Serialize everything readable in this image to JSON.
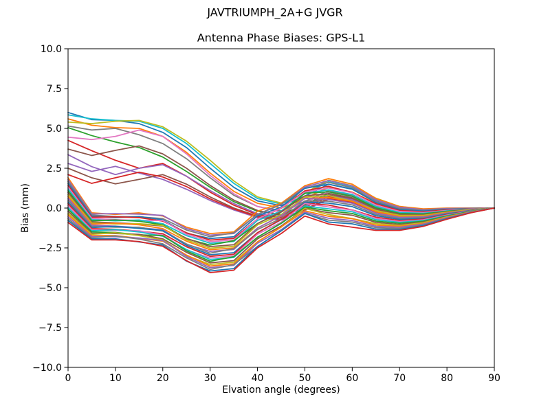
{
  "chart_data": {
    "type": "line",
    "title": "JAVTRIUMPH_2A+G JVGR",
    "subtitle": "Antenna Phase Biases: GPS-L1",
    "xlabel": "Elvation angle (degrees)",
    "ylabel": "Bias (mm)",
    "xlim": [
      0,
      90
    ],
    "ylim": [
      -10.0,
      10.0
    ],
    "xticks": [
      0,
      10,
      20,
      30,
      40,
      50,
      60,
      70,
      80,
      90
    ],
    "yticks": [
      -10.0,
      -7.5,
      -5.0,
      -2.5,
      0.0,
      2.5,
      5.0,
      7.5,
      10.0
    ],
    "ytick_labels": [
      "−10.0",
      "−7.5",
      "−5.0",
      "−2.5",
      "0.0",
      "2.5",
      "5.0",
      "7.5",
      "10.0"
    ],
    "grid": false,
    "legend": "none",
    "x": [
      0,
      5,
      10,
      15,
      20,
      25,
      30,
      35,
      40,
      45,
      50,
      55,
      60,
      65,
      70,
      75,
      80,
      85,
      90
    ],
    "series": [
      {
        "name": "line-01",
        "color": "#1f77b4",
        "values": [
          6.0,
          5.55,
          5.5,
          5.3,
          4.75,
          3.8,
          2.5,
          1.3,
          0.45,
          0.15,
          0.75,
          1.5,
          1.2,
          0.45,
          -0.05,
          -0.2,
          -0.1,
          -0.02,
          0.0
        ]
      },
      {
        "name": "line-02",
        "color": "#17becf",
        "values": [
          5.85,
          5.6,
          5.5,
          5.45,
          5.0,
          4.05,
          2.8,
          1.55,
          0.6,
          0.25,
          0.9,
          1.65,
          1.32,
          0.58,
          0.08,
          -0.1,
          -0.04,
          0.0,
          0.0
        ]
      },
      {
        "name": "line-03",
        "color": "#ff7f0e",
        "values": [
          5.6,
          5.2,
          5.05,
          5.0,
          4.5,
          3.5,
          2.2,
          1.05,
          0.3,
          0.0,
          0.6,
          1.3,
          1.0,
          0.3,
          -0.18,
          -0.3,
          -0.16,
          -0.05,
          0.0
        ]
      },
      {
        "name": "line-04",
        "color": "#bcbd22",
        "values": [
          5.4,
          5.3,
          5.45,
          5.5,
          5.1,
          4.2,
          3.0,
          1.7,
          0.7,
          0.32,
          0.95,
          1.75,
          1.4,
          0.62,
          0.1,
          -0.08,
          -0.02,
          0.0,
          0.0
        ]
      },
      {
        "name": "line-05",
        "color": "#7f7f7f",
        "values": [
          5.15,
          4.9,
          5.0,
          4.6,
          4.05,
          3.1,
          1.9,
          0.8,
          0.1,
          -0.18,
          0.42,
          1.1,
          0.8,
          0.12,
          -0.38,
          -0.48,
          -0.28,
          -0.1,
          0.0
        ]
      },
      {
        "name": "line-06",
        "color": "#2ca02c",
        "values": [
          5.05,
          4.55,
          4.15,
          3.8,
          3.2,
          2.3,
          1.3,
          0.4,
          -0.2,
          -0.4,
          0.22,
          0.92,
          0.65,
          0.0,
          -0.48,
          -0.55,
          -0.34,
          -0.12,
          0.0
        ]
      },
      {
        "name": "line-07",
        "color": "#e377c2",
        "values": [
          4.45,
          4.3,
          4.5,
          4.9,
          4.5,
          3.4,
          2.05,
          0.9,
          0.1,
          -0.25,
          0.35,
          1.0,
          0.72,
          0.06,
          -0.42,
          -0.52,
          -0.3,
          -0.11,
          0.0
        ]
      },
      {
        "name": "line-08",
        "color": "#d62728",
        "values": [
          4.25,
          3.6,
          3.0,
          2.5,
          2.8,
          2.0,
          1.0,
          0.18,
          -0.42,
          -0.58,
          0.05,
          0.72,
          0.48,
          -0.12,
          -0.58,
          -0.64,
          -0.4,
          -0.15,
          0.0
        ]
      },
      {
        "name": "line-09",
        "color": "#8c564b",
        "values": [
          3.7,
          3.3,
          3.62,
          3.9,
          3.4,
          2.5,
          1.42,
          0.5,
          -0.15,
          -0.45,
          0.15,
          0.82,
          0.58,
          -0.05,
          -0.52,
          -0.6,
          -0.36,
          -0.13,
          0.0
        ]
      },
      {
        "name": "line-10",
        "color": "#9467bd",
        "values": [
          3.35,
          2.6,
          2.1,
          2.5,
          2.72,
          2.0,
          1.1,
          0.28,
          -0.35,
          -0.52,
          0.1,
          0.78,
          0.52,
          -0.08,
          -0.55,
          -0.62,
          -0.38,
          -0.14,
          0.0
        ]
      },
      {
        "name": "line-11",
        "color": "#9467bd",
        "values": [
          2.8,
          2.3,
          2.62,
          2.2,
          1.8,
          1.18,
          0.48,
          -0.12,
          -0.6,
          -0.75,
          -0.15,
          0.55,
          0.3,
          -0.28,
          -0.75,
          -0.78,
          -0.48,
          -0.18,
          0.0
        ]
      },
      {
        "name": "line-12",
        "color": "#8c564b",
        "values": [
          2.5,
          1.9,
          1.52,
          1.8,
          2.1,
          1.5,
          0.7,
          0.0,
          -0.5,
          -0.68,
          -0.08,
          0.62,
          0.38,
          -0.22,
          -0.7,
          -0.72,
          -0.44,
          -0.16,
          0.0
        ]
      },
      {
        "name": "line-13",
        "color": "#d62728",
        "values": [
          2.1,
          1.55,
          1.9,
          2.25,
          1.95,
          1.35,
          0.58,
          -0.06,
          -0.55,
          -0.7,
          -0.1,
          0.58,
          0.34,
          -0.25,
          -0.72,
          -0.75,
          -0.46,
          -0.17,
          0.0
        ]
      },
      {
        "name": "line-14",
        "color": "#ff7f0e",
        "values": [
          1.9,
          -0.3,
          -0.4,
          -0.3,
          -0.5,
          -1.2,
          -1.6,
          -1.5,
          -0.2,
          0.3,
          1.4,
          1.85,
          1.5,
          0.6,
          0.1,
          -0.05,
          0.0,
          0.0,
          0.0
        ]
      },
      {
        "name": "line-15",
        "color": "#9467bd",
        "values": [
          1.78,
          -0.37,
          -0.35,
          -0.38,
          -0.46,
          -1.29,
          -1.7,
          -1.6,
          -0.4,
          0.22,
          1.32,
          1.73,
          1.39,
          0.52,
          0.04,
          -0.1,
          -0.03,
          -0.01,
          0.0
        ]
      },
      {
        "name": "line-16",
        "color": "#7f7f7f",
        "values": [
          1.67,
          -0.44,
          -0.53,
          -0.55,
          -0.66,
          -1.38,
          -1.8,
          -1.55,
          -0.39,
          0.24,
          1.24,
          1.61,
          1.28,
          0.43,
          -0.03,
          -0.14,
          -0.06,
          -0.03,
          0.0
        ]
      },
      {
        "name": "line-17",
        "color": "#1f77b4",
        "values": [
          1.55,
          -0.51,
          -0.6,
          -0.53,
          -0.74,
          -1.58,
          -1.91,
          -1.8,
          -0.49,
          0.06,
          1.24,
          1.49,
          1.18,
          0.35,
          -0.09,
          -0.19,
          -0.09,
          -0.04,
          0.0
        ]
      },
      {
        "name": "line-18",
        "color": "#d62728",
        "values": [
          1.43,
          -0.58,
          -0.55,
          -0.6,
          -0.82,
          -1.55,
          -2.01,
          -1.9,
          -0.68,
          -0.02,
          1.08,
          1.37,
          0.97,
          0.27,
          -0.15,
          -0.23,
          -0.12,
          -0.05,
          0.0
        ]
      },
      {
        "name": "line-19",
        "color": "#e377c2",
        "values": [
          1.32,
          -0.65,
          -0.73,
          -0.78,
          -0.78,
          -1.64,
          -2.11,
          -2.0,
          -0.68,
          0.0,
          1.0,
          1.26,
          0.96,
          0.18,
          -0.21,
          -0.28,
          -0.15,
          -0.06,
          0.0
        ]
      },
      {
        "name": "line-20",
        "color": "#17becf",
        "values": [
          1.2,
          -0.73,
          -0.8,
          -0.75,
          -0.98,
          -1.73,
          -2.21,
          -2.1,
          -0.78,
          -0.18,
          0.93,
          1.14,
          0.85,
          0.1,
          -0.28,
          -0.33,
          -0.18,
          -0.08,
          0.0
        ]
      },
      {
        "name": "line-21",
        "color": "#2ca02c",
        "values": [
          1.08,
          -0.8,
          -0.75,
          -0.83,
          -1.05,
          -1.93,
          -2.32,
          -2.05,
          -0.97,
          -0.25,
          0.93,
          1.02,
          0.74,
          0.02,
          -0.34,
          -0.37,
          -0.2,
          -0.09,
          0.0
        ]
      },
      {
        "name": "line-22",
        "color": "#8c564b",
        "values": [
          0.97,
          -0.87,
          -0.93,
          -1.0,
          -1.13,
          -1.9,
          -2.42,
          -2.3,
          -0.97,
          -0.23,
          0.77,
          0.9,
          0.63,
          -0.07,
          -0.4,
          -0.42,
          -0.23,
          -0.1,
          0.0
        ]
      },
      {
        "name": "line-23",
        "color": "#bcbd22",
        "values": [
          0.85,
          -0.94,
          -1.0,
          -0.98,
          -1.09,
          -1.99,
          -2.52,
          -2.4,
          -1.06,
          -0.41,
          0.69,
          0.78,
          0.43,
          -0.15,
          -0.46,
          -0.46,
          -0.26,
          -0.11,
          0.0
        ]
      },
      {
        "name": "line-24",
        "color": "#ff7f0e",
        "values": [
          0.73,
          -1.01,
          -0.95,
          -1.05,
          -1.29,
          -2.08,
          -2.62,
          -2.5,
          -1.26,
          -0.49,
          0.61,
          0.66,
          0.42,
          -0.23,
          -0.53,
          -0.51,
          -0.29,
          -0.13,
          0.0
        ]
      },
      {
        "name": "line-25",
        "color": "#9467bd",
        "values": [
          0.62,
          -1.08,
          -1.13,
          -1.23,
          -1.37,
          -2.28,
          -2.72,
          -2.6,
          -1.25,
          -0.47,
          0.61,
          0.54,
          0.31,
          -0.32,
          -0.59,
          -0.55,
          -0.32,
          -0.14,
          0.0
        ]
      },
      {
        "name": "line-26",
        "color": "#7f7f7f",
        "values": [
          0.5,
          -1.15,
          -1.2,
          -1.2,
          -1.45,
          -2.25,
          -2.83,
          -2.55,
          -1.35,
          -0.65,
          0.45,
          0.43,
          0.2,
          -0.4,
          -0.65,
          -0.6,
          -0.35,
          -0.15,
          0.0
        ]
      },
      {
        "name": "line-27",
        "color": "#1f77b4",
        "values": [
          0.38,
          -1.22,
          -1.15,
          -1.28,
          -1.41,
          -2.34,
          -2.93,
          -2.8,
          -1.55,
          -0.73,
          0.37,
          0.31,
          0.09,
          -0.48,
          -0.71,
          -0.65,
          -0.38,
          -0.16,
          0.0
        ]
      },
      {
        "name": "line-28",
        "color": "#d62728",
        "values": [
          0.27,
          -1.29,
          -1.33,
          -1.45,
          -1.61,
          -2.43,
          -3.03,
          -2.9,
          -1.54,
          -0.71,
          0.29,
          0.19,
          -0.12,
          -0.57,
          -0.78,
          -0.69,
          -0.41,
          -0.18,
          0.0
        ]
      },
      {
        "name": "line-29",
        "color": "#e377c2",
        "values": [
          0.15,
          -1.36,
          -1.4,
          -1.43,
          -1.69,
          -2.63,
          -3.13,
          -3.0,
          -1.64,
          -0.89,
          0.29,
          0.07,
          -0.13,
          -0.65,
          -0.84,
          -0.74,
          -0.44,
          -0.19,
          0.0
        ]
      },
      {
        "name": "line-30",
        "color": "#17becf",
        "values": [
          0.03,
          -1.43,
          -1.35,
          -1.5,
          -1.77,
          -2.6,
          -3.23,
          -3.1,
          -1.83,
          -0.97,
          0.13,
          -0.05,
          -0.23,
          -0.73,
          -0.9,
          -0.78,
          -0.47,
          -0.2,
          0.0
        ]
      },
      {
        "name": "line-31",
        "color": "#2ca02c",
        "values": [
          -0.08,
          -1.5,
          -1.53,
          -1.68,
          -1.73,
          -2.69,
          -3.34,
          -3.05,
          -1.83,
          -0.95,
          0.06,
          -0.17,
          -0.34,
          -0.82,
          -0.96,
          -0.83,
          -0.5,
          -0.21,
          0.0
        ]
      },
      {
        "name": "line-32",
        "color": "#8c564b",
        "values": [
          -0.2,
          -1.58,
          -1.6,
          -1.65,
          -1.93,
          -2.78,
          -3.44,
          -3.3,
          -1.93,
          -1.13,
          -0.02,
          -0.29,
          -0.45,
          -0.9,
          -1.03,
          -0.88,
          -0.53,
          -0.23,
          0.0
        ]
      },
      {
        "name": "line-33",
        "color": "#bcbd22",
        "values": [
          -0.32,
          -1.65,
          -1.55,
          -1.73,
          -2.0,
          -2.98,
          -3.54,
          -3.4,
          -2.12,
          -1.2,
          -0.02,
          -0.41,
          -0.66,
          -0.98,
          -1.09,
          -0.92,
          -0.55,
          -0.24,
          0.0
        ]
      },
      {
        "name": "line-34",
        "color": "#ff7f0e",
        "values": [
          -0.43,
          -1.72,
          -1.73,
          -1.9,
          -2.08,
          -2.95,
          -3.64,
          -3.5,
          -2.12,
          -1.18,
          -0.18,
          -0.52,
          -0.67,
          -1.07,
          -1.15,
          -0.97,
          -0.58,
          -0.25,
          0.0
        ]
      },
      {
        "name": "line-35",
        "color": "#9467bd",
        "values": [
          -0.55,
          -1.79,
          -1.8,
          -1.88,
          -2.04,
          -3.04,
          -3.74,
          -3.6,
          -2.21,
          -1.36,
          -0.26,
          -0.64,
          -0.78,
          -1.15,
          -1.21,
          -1.01,
          -0.61,
          -0.26,
          0.0
        ]
      },
      {
        "name": "line-36",
        "color": "#7f7f7f",
        "values": [
          -0.67,
          -1.86,
          -1.75,
          -1.95,
          -2.24,
          -3.13,
          -3.85,
          -3.55,
          -2.41,
          -1.44,
          -0.34,
          -0.76,
          -0.88,
          -1.23,
          -1.28,
          -1.06,
          -0.64,
          -0.28,
          0.0
        ]
      },
      {
        "name": "line-37",
        "color": "#1f77b4",
        "values": [
          -0.78,
          -1.93,
          -1.93,
          -2.13,
          -2.32,
          -3.33,
          -3.95,
          -3.8,
          -2.41,
          -1.42,
          -0.34,
          -0.88,
          -0.99,
          -1.32,
          -1.34,
          -1.1,
          -0.67,
          -0.29,
          0.0
        ]
      },
      {
        "name": "line-38",
        "color": "#d62728",
        "values": [
          -0.9,
          -2.0,
          -2.0,
          -2.1,
          -2.4,
          -3.3,
          -4.05,
          -3.9,
          -2.5,
          -1.6,
          -0.5,
          -1.0,
          -1.2,
          -1.4,
          -1.4,
          -1.15,
          -0.7,
          -0.3,
          0.0
        ]
      }
    ]
  }
}
